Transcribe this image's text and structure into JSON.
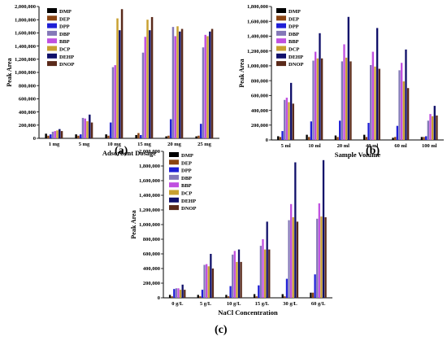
{
  "colors": {
    "DMP": "#000000",
    "DEP": "#8b4513",
    "DPP": "#1f1fd6",
    "DBP": "#8478b8",
    "BBP": "#c050e0",
    "DCP": "#c8a030",
    "DEHP": "#10106a",
    "DNOP": "#5a2a1a"
  },
  "labels": {
    "a": "(a)",
    "b": "(b)",
    "c": "(c)"
  },
  "chart_data": [
    {
      "id": "a",
      "type": "bar",
      "title": "",
      "xlabel": "Adsorbent Dosage",
      "ylabel": "Peak Area",
      "ylim": [
        0,
        2000000
      ],
      "yticks": [
        "0",
        "200,000",
        "400,000",
        "600,000",
        "800,000",
        "1,000,000",
        "1,200,000",
        "1,400,000",
        "1,600,000",
        "1,800,000",
        "2,000,000"
      ],
      "legend_position": "top-left",
      "categories": [
        "1 mg",
        "5 mg",
        "10 mg",
        "15 mg",
        "20 mg",
        "25 mg"
      ],
      "series": [
        {
          "name": "DMP",
          "values": [
            70000,
            60000,
            60000,
            50000,
            30000,
            30000
          ]
        },
        {
          "name": "DEP",
          "values": [
            40000,
            40000,
            40000,
            80000,
            40000,
            40000
          ]
        },
        {
          "name": "DPP",
          "values": [
            60000,
            60000,
            240000,
            50000,
            290000,
            220000
          ]
        },
        {
          "name": "DBP",
          "values": [
            100000,
            310000,
            1080000,
            1300000,
            1690000,
            1380000
          ]
        },
        {
          "name": "BBP",
          "values": [
            110000,
            300000,
            1110000,
            1540000,
            1550000,
            1570000
          ]
        },
        {
          "name": "DCP",
          "values": [
            120000,
            260000,
            1820000,
            1800000,
            1700000,
            1550000
          ]
        },
        {
          "name": "DEHP",
          "values": [
            140000,
            360000,
            1640000,
            1640000,
            1620000,
            1620000
          ]
        },
        {
          "name": "DNOP",
          "values": [
            110000,
            240000,
            1960000,
            1840000,
            1660000,
            1660000
          ]
        }
      ]
    },
    {
      "id": "b",
      "type": "bar",
      "title": "",
      "xlabel": "Sample Volume",
      "ylabel": "Peak Area",
      "ylim": [
        0,
        1800000
      ],
      "yticks": [
        "0",
        "200,000",
        "400,000",
        "600,000",
        "800,000",
        "1,000,000",
        "1,200,000",
        "1,400,000",
        "1,600,000",
        "1,800,000"
      ],
      "legend_position": "top-left",
      "categories": [
        "5 ml",
        "10 ml",
        "20 ml",
        "40 ml",
        "60 ml",
        "100 ml"
      ],
      "series": [
        {
          "name": "DMP",
          "values": [
            50000,
            70000,
            60000,
            70000,
            30000,
            40000
          ]
        },
        {
          "name": "DEP",
          "values": [
            40000,
            40000,
            40000,
            40000,
            40000,
            40000
          ]
        },
        {
          "name": "DPP",
          "values": [
            120000,
            250000,
            260000,
            230000,
            190000,
            50000
          ]
        },
        {
          "name": "DBP",
          "values": [
            540000,
            1070000,
            1060000,
            1010000,
            940000,
            260000
          ]
        },
        {
          "name": "BBP",
          "values": [
            570000,
            1190000,
            1290000,
            1190000,
            1040000,
            350000
          ]
        },
        {
          "name": "DCP",
          "values": [
            510000,
            1100000,
            1110000,
            990000,
            790000,
            320000
          ]
        },
        {
          "name": "DEHP",
          "values": [
            770000,
            1440000,
            1660000,
            1510000,
            1220000,
            460000
          ]
        },
        {
          "name": "DNOP",
          "values": [
            490000,
            1100000,
            1060000,
            960000,
            700000,
            330000
          ]
        }
      ]
    },
    {
      "id": "c",
      "type": "bar",
      "title": "",
      "xlabel": "NaCl Concentration",
      "ylabel": "Peak Area",
      "ylim": [
        0,
        2000000
      ],
      "yticks": [
        "0",
        "200,000",
        "400,000",
        "600,000",
        "800,000",
        "1,000,000",
        "1,200,000",
        "1,400,000",
        "1,600,000",
        "1,800,000",
        "2,000,000"
      ],
      "legend_position": "top-left",
      "categories": [
        "0 g/L",
        "5 g/L",
        "10 g/L",
        "15 g/L",
        "30 g/L",
        "60 g/L"
      ],
      "series": [
        {
          "name": "DMP",
          "values": [
            40000,
            40000,
            40000,
            50000,
            50000,
            70000
          ]
        },
        {
          "name": "DEP",
          "values": [
            20000,
            20000,
            20000,
            20000,
            20000,
            70000
          ]
        },
        {
          "name": "DPP",
          "values": [
            120000,
            110000,
            160000,
            170000,
            260000,
            320000
          ]
        },
        {
          "name": "DBP",
          "values": [
            130000,
            450000,
            590000,
            710000,
            1060000,
            1080000
          ]
        },
        {
          "name": "BBP",
          "values": [
            130000,
            460000,
            640000,
            800000,
            1280000,
            1290000
          ]
        },
        {
          "name": "DCP",
          "values": [
            110000,
            430000,
            490000,
            660000,
            1100000,
            1110000
          ]
        },
        {
          "name": "DEHP",
          "values": [
            180000,
            600000,
            660000,
            1040000,
            1850000,
            1880000
          ]
        },
        {
          "name": "DNOP",
          "values": [
            110000,
            400000,
            490000,
            660000,
            1040000,
            1100000
          ]
        }
      ]
    }
  ]
}
